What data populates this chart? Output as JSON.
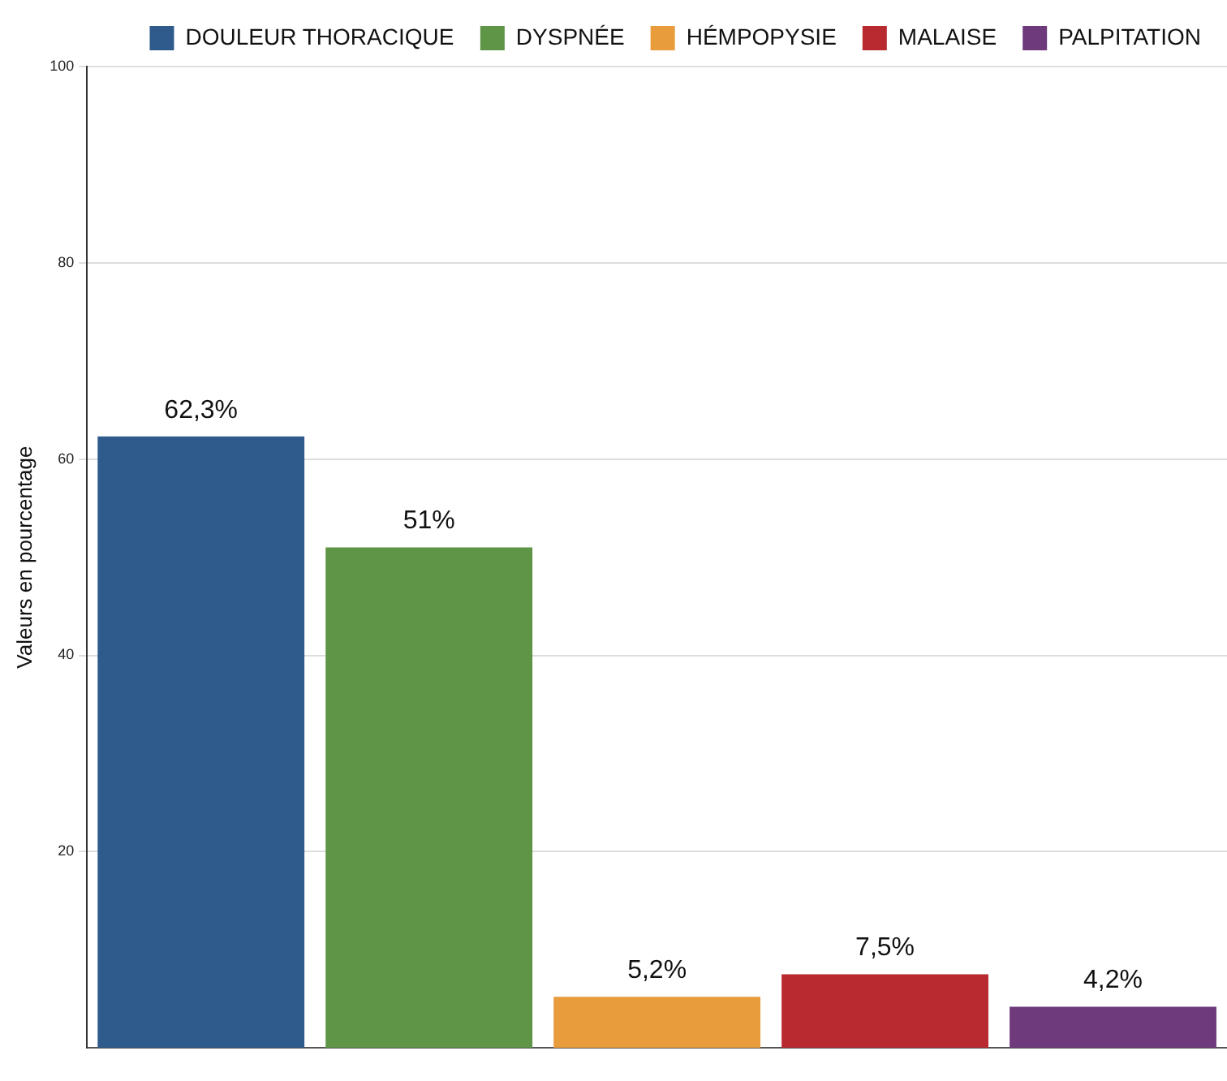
{
  "chart_data": {
    "type": "bar",
    "ylabel": "Valeurs en pourcentage",
    "categories": [
      null
    ],
    "series": [
      {
        "name": "DOULEUR THORACIQUE",
        "color": "#2e5a8c",
        "values": [
          62.3
        ],
        "value_labels": [
          "62,3%"
        ]
      },
      {
        "name": "DYSPNÉE",
        "color": "#5e9547",
        "values": [
          51
        ],
        "value_labels": [
          "51%"
        ]
      },
      {
        "name": "HÉMPOPYSIE",
        "color": "#e89c3c",
        "values": [
          5.2
        ],
        "value_labels": [
          "5,2%"
        ]
      },
      {
        "name": "MALAISE",
        "color": "#b82a30",
        "values": [
          7.5
        ],
        "value_labels": [
          "7,5%"
        ]
      },
      {
        "name": "PALPITATION",
        "color": "#6e3a7c",
        "values": [
          4.2
        ],
        "value_labels": [
          "4,2%"
        ]
      }
    ],
    "ylim": [
      0,
      100
    ],
    "yticks": [
      20,
      40,
      60,
      80,
      100
    ],
    "grid": "y",
    "legend": "top right"
  }
}
